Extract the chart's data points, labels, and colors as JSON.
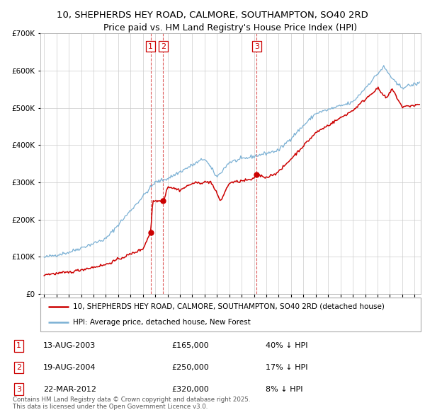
{
  "title": "10, SHEPHERDS HEY ROAD, CALMORE, SOUTHAMPTON, SO40 2RD",
  "subtitle": "Price paid vs. HM Land Registry's House Price Index (HPI)",
  "red_label": "10, SHEPHERDS HEY ROAD, CALMORE, SOUTHAMPTON, SO40 2RD (detached house)",
  "blue_label": "HPI: Average price, detached house, New Forest",
  "footer": "Contains HM Land Registry data © Crown copyright and database right 2025.\nThis data is licensed under the Open Government Licence v3.0.",
  "sales": [
    {
      "num": 1,
      "date_dec": 2003.619,
      "price": 165000,
      "date_str": "13-AUG-2003",
      "price_str": "£165,000",
      "pct_str": "40% ↓ HPI"
    },
    {
      "num": 2,
      "date_dec": 2004.634,
      "price": 250000,
      "date_str": "19-AUG-2004",
      "price_str": "£250,000",
      "pct_str": "17% ↓ HPI"
    },
    {
      "num": 3,
      "date_dec": 2012.219,
      "price": 320000,
      "date_str": "22-MAR-2012",
      "price_str": "£320,000",
      "pct_str": "8% ↓ HPI"
    }
  ],
  "ylim": [
    0,
    700000
  ],
  "yticks": [
    0,
    100000,
    200000,
    300000,
    400000,
    500000,
    600000,
    700000
  ],
  "xlim_left": 1994.7,
  "xlim_right": 2025.5,
  "background_color": "#ffffff",
  "grid_color": "#cccccc",
  "red_color": "#cc0000",
  "blue_color": "#7ab0d4"
}
